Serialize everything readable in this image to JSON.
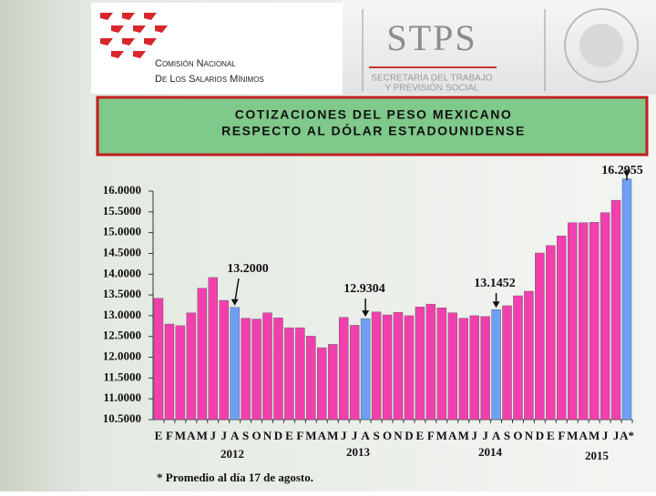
{
  "header": {
    "org_line1": "Comisión Nacional",
    "org_line2": "De Los Salarios Mínimos",
    "agency": "STPS",
    "agency_sub1": "SECRETARÍA DEL TRABAJO",
    "agency_sub2": "Y PREVISIÓN SOCIAL"
  },
  "chart_data": {
    "type": "bar",
    "title": [
      "COTIZACIONES DEL PESO MEXICANO",
      "RESPECTO AL DÓLAR ESTADOUNIDENSE"
    ],
    "categories": [
      "E",
      "F",
      "M",
      "A",
      "M",
      "J",
      "J",
      "A",
      "S",
      "O",
      "N",
      "D",
      "E",
      "F",
      "M",
      "A",
      "M",
      "J",
      "J",
      "A",
      "S",
      "O",
      "N",
      "D",
      "E",
      "F",
      "M",
      "A",
      "M",
      "J",
      "J",
      "A",
      "S",
      "O",
      "N",
      "D",
      "E",
      "F",
      "M",
      "A",
      "M",
      "J",
      "J",
      "A*"
    ],
    "year_labels": [
      "2012",
      "2013",
      "2014",
      "2015"
    ],
    "values": [
      13.42,
      12.8,
      12.76,
      13.07,
      13.66,
      13.92,
      13.37,
      13.2,
      12.94,
      12.92,
      13.07,
      12.95,
      12.71,
      12.71,
      12.51,
      12.23,
      12.31,
      12.96,
      12.77,
      12.9304,
      13.09,
      13.02,
      13.08,
      13.0,
      13.21,
      13.28,
      13.19,
      13.07,
      12.94,
      13.0,
      12.98,
      13.1452,
      13.24,
      13.48,
      13.59,
      14.51,
      14.69,
      14.92,
      15.24,
      15.24,
      15.25,
      15.48,
      15.78,
      16.2955
    ],
    "value_labels": [
      null,
      null,
      null,
      null,
      null,
      null,
      null,
      "13.2000",
      null,
      null,
      null,
      null,
      null,
      null,
      null,
      null,
      null,
      null,
      null,
      "12.9304",
      null,
      null,
      null,
      null,
      null,
      null,
      null,
      null,
      null,
      null,
      null,
      "13.1452",
      null,
      null,
      null,
      null,
      null,
      null,
      null,
      null,
      null,
      null,
      null,
      "16.2955"
    ],
    "colors": [
      "#f23fae",
      "#f23fae",
      "#f23fae",
      "#f23fae",
      "#f23fae",
      "#f23fae",
      "#f23fae",
      "#6f9ef5",
      "#f23fae",
      "#f23fae",
      "#f23fae",
      "#f23fae",
      "#f23fae",
      "#f23fae",
      "#f23fae",
      "#f23fae",
      "#f23fae",
      "#f23fae",
      "#f23fae",
      "#6f9ef5",
      "#f23fae",
      "#f23fae",
      "#f23fae",
      "#f23fae",
      "#f23fae",
      "#f23fae",
      "#f23fae",
      "#f23fae",
      "#f23fae",
      "#f23fae",
      "#f23fae",
      "#6f9ef5",
      "#f23fae",
      "#f23fae",
      "#f23fae",
      "#f23fae",
      "#f23fae",
      "#f23fae",
      "#f23fae",
      "#f23fae",
      "#f23fae",
      "#f23fae",
      "#f23fae",
      "#6f9ef5"
    ],
    "ylim": [
      10.5,
      16
    ],
    "yticks": [
      {
        "value": 10.5,
        "label": "10.5000"
      },
      {
        "value": 11,
        "label": "11.0000"
      },
      {
        "value": 11.5,
        "label": "11.5000"
      },
      {
        "value": 12,
        "label": "12.0000"
      },
      {
        "value": 12.5,
        "label": "12.5000"
      },
      {
        "value": 13,
        "label": "13.0000"
      },
      {
        "value": 13.5,
        "label": "13.5000"
      },
      {
        "value": 14,
        "label": "14.0000"
      },
      {
        "value": 14.5,
        "label": "14.5000"
      },
      {
        "value": 15,
        "label": "15.0000"
      },
      {
        "value": 15.5,
        "label": "15.5000"
      },
      {
        "value": 16,
        "label": "16.0000"
      }
    ],
    "footnote": "* Promedio al día 17 de agosto."
  }
}
